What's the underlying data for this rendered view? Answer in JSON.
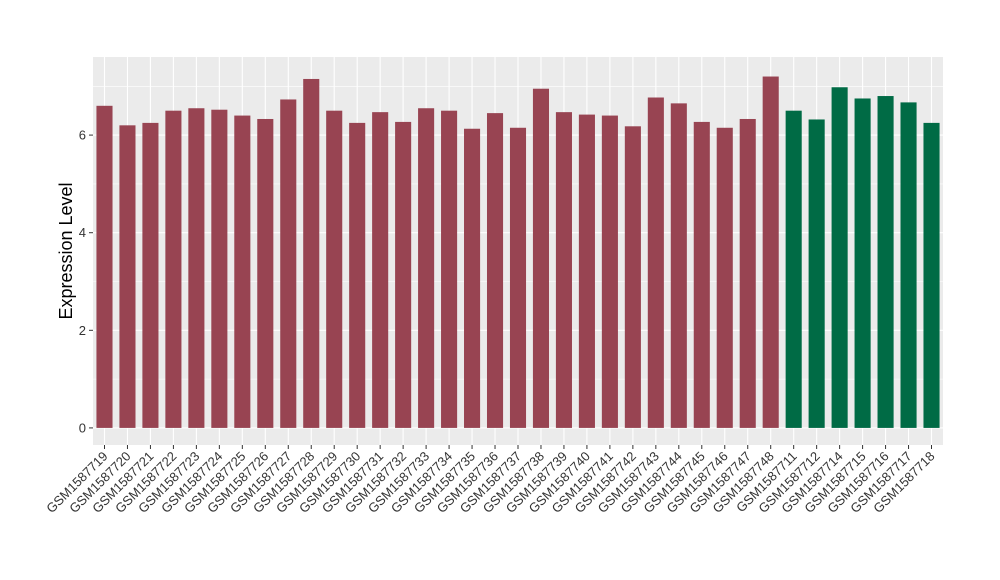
{
  "chart_data": {
    "type": "bar",
    "title": "",
    "xlabel": "",
    "ylabel": "Expression Level",
    "ylim": [
      -0.35,
      7.6
    ],
    "yticks": [
      0,
      2,
      4,
      6
    ],
    "grid": true,
    "background": "#ebebeb",
    "categories": [
      "GSM1587719",
      "GSM1587720",
      "GSM1587721",
      "GSM1587722",
      "GSM1587723",
      "GSM1587724",
      "GSM1587725",
      "GSM1587726",
      "GSM1587727",
      "GSM1587728",
      "GSM1587729",
      "GSM1587730",
      "GSM1587731",
      "GSM1587732",
      "GSM1587733",
      "GSM1587734",
      "GSM1587735",
      "GSM1587736",
      "GSM1587737",
      "GSM1587738",
      "GSM1587739",
      "GSM1587740",
      "GSM1587741",
      "GSM1587742",
      "GSM1587743",
      "GSM1587744",
      "GSM1587745",
      "GSM1587746",
      "GSM1587747",
      "GSM1587748",
      "GSM1587711",
      "GSM1587712",
      "GSM1587714",
      "GSM1587715",
      "GSM1587716",
      "GSM1587717",
      "GSM1587718"
    ],
    "values": [
      6.6,
      6.2,
      6.25,
      6.5,
      6.55,
      6.52,
      6.4,
      6.33,
      6.73,
      7.15,
      6.5,
      6.25,
      6.47,
      6.27,
      6.55,
      6.5,
      6.13,
      6.45,
      6.15,
      6.95,
      6.47,
      6.42,
      6.4,
      6.18,
      6.77,
      6.65,
      6.27,
      6.15,
      6.33,
      7.2,
      6.5,
      6.32,
      6.98,
      6.75,
      6.8,
      6.67,
      6.25
    ],
    "bar_colors": [
      "#984452",
      "#984452",
      "#984452",
      "#984452",
      "#984452",
      "#984452",
      "#984452",
      "#984452",
      "#984452",
      "#984452",
      "#984452",
      "#984452",
      "#984452",
      "#984452",
      "#984452",
      "#984452",
      "#984452",
      "#984452",
      "#984452",
      "#984452",
      "#984452",
      "#984452",
      "#984452",
      "#984452",
      "#984452",
      "#984452",
      "#984452",
      "#984452",
      "#984452",
      "#984452",
      "#006b45",
      "#006b45",
      "#006b45",
      "#006b45",
      "#006b45",
      "#006b45",
      "#006b45"
    ]
  }
}
